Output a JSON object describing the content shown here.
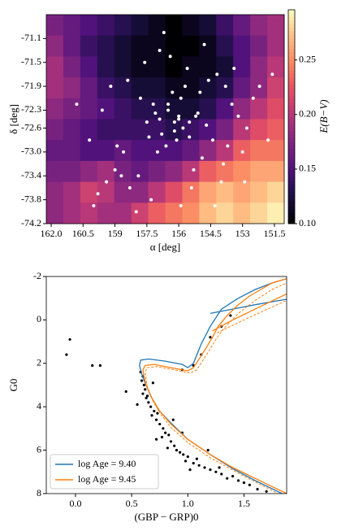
{
  "chart_data": [
    {
      "type": "heatmap",
      "xlabel": "α [deg]",
      "ylabel": "δ [deg]",
      "colorbar_label": "E(B−V)",
      "cmap": "magma",
      "xlim": [
        162.23,
        151.04
      ],
      "ylim": [
        -74.2,
        -70.7
      ],
      "xticks": [
        {
          "value": 162,
          "label": "162.0"
        },
        160.5,
        159,
        157.5,
        156,
        154.5,
        153,
        151.5
      ],
      "xtick_labels_shown": [
        "162.0",
        "160.5",
        "159.0",
        "157.5",
        "156.0",
        "154.5",
        "153.0",
        "151.5"
      ],
      "yticks": [
        -71.1,
        -71.5,
        -71.9,
        -72.3,
        -72.6,
        {
          "value": -73,
          "label": "-73.0"
        },
        -73.4,
        -73.8,
        -74.2
      ],
      "clim": [
        0.1,
        0.296
      ],
      "cticks": [
        {
          "value": 0.1,
          "label": "0.10"
        },
        0.15,
        {
          "value": 0.2,
          "label": "0.20"
        },
        0.25
      ],
      "z": [
        [
          0.17,
          0.16,
          0.15,
          0.14,
          0.13,
          0.12,
          0.11,
          0.1,
          0.11,
          0.12,
          0.14,
          0.16,
          0.18,
          0.19
        ],
        [
          0.18,
          0.16,
          0.14,
          0.13,
          0.12,
          0.11,
          0.11,
          0.1,
          0.1,
          0.11,
          0.13,
          0.15,
          0.17,
          0.19
        ],
        [
          0.19,
          0.17,
          0.15,
          0.13,
          0.12,
          0.11,
          0.11,
          0.1,
          0.11,
          0.11,
          0.12,
          0.15,
          0.18,
          0.2
        ],
        [
          0.19,
          0.18,
          0.16,
          0.14,
          0.13,
          0.12,
          0.12,
          0.11,
          0.11,
          0.12,
          0.13,
          0.16,
          0.18,
          0.21
        ],
        [
          0.18,
          0.17,
          0.16,
          0.15,
          0.14,
          0.13,
          0.13,
          0.12,
          0.12,
          0.13,
          0.15,
          0.18,
          0.2,
          0.22
        ],
        [
          0.17,
          0.16,
          0.15,
          0.14,
          0.14,
          0.14,
          0.14,
          0.13,
          0.14,
          0.15,
          0.17,
          0.2,
          0.22,
          0.23
        ],
        [
          0.16,
          0.16,
          0.15,
          0.15,
          0.16,
          0.15,
          0.15,
          0.15,
          0.16,
          0.18,
          0.2,
          0.23,
          0.24,
          0.24
        ],
        [
          0.17,
          0.17,
          0.18,
          0.19,
          0.17,
          0.16,
          0.17,
          0.18,
          0.2,
          0.23,
          0.24,
          0.25,
          0.26,
          0.26
        ],
        [
          0.18,
          0.19,
          0.21,
          0.2,
          0.18,
          0.18,
          0.2,
          0.22,
          0.24,
          0.26,
          0.27,
          0.26,
          0.27,
          0.28
        ],
        [
          0.18,
          0.19,
          0.2,
          0.19,
          0.19,
          0.21,
          0.23,
          0.24,
          0.25,
          0.27,
          0.28,
          0.27,
          0.28,
          0.29
        ]
      ],
      "points": {
        "color": "#ffffff",
        "x": [
          156.2,
          156.0,
          155.8,
          156.5,
          155.5,
          156.8,
          157.2,
          155.2,
          156.1,
          155.9,
          156.3,
          155.7,
          156.6,
          157.0,
          155.0,
          154.6,
          154.2,
          153.8,
          153.5,
          153.2,
          152.8,
          154.9,
          155.3,
          157.5,
          157.9,
          158.3,
          158.7,
          159.0,
          159.4,
          158.6,
          159.8,
          160.2,
          157.6,
          156.9,
          156.4,
          155.6,
          154.8,
          154.4,
          153.9,
          153.0,
          152.5,
          152.2,
          151.8,
          157.3,
          158.0,
          156.7,
          155.4,
          154.0,
          156.2,
          155.1,
          157.8,
          158.9,
          159.6,
          160.8,
          154.7,
          153.4,
          156.0,
          155.5,
          156.9,
          157.4,
          152.9,
          153.7,
          158.4,
          159.2,
          155.9,
          154.3,
          156.5,
          157.1,
          160.0,
          151.6
        ],
        "values": [
          -72.5,
          -72.4,
          -72.6,
          -72.3,
          -72.5,
          -72.7,
          -72.2,
          -72.4,
          -72.8,
          -72.1,
          -72.0,
          -71.9,
          -72.9,
          -73.0,
          -72.0,
          -71.8,
          -71.7,
          -71.9,
          -72.2,
          -72.4,
          -72.6,
          -73.1,
          -73.3,
          -72.5,
          -73.4,
          -73.6,
          -73.4,
          -73.3,
          -73.5,
          -73.0,
          -73.7,
          -72.8,
          -71.5,
          -71.3,
          -71.4,
          -71.6,
          -71.2,
          -72.8,
          -73.2,
          -73.0,
          -72.1,
          -71.9,
          -72.8,
          -73.8,
          -74.0,
          -71.0,
          -73.6,
          -73.5,
          -72.65,
          -72.35,
          -72.1,
          -72.9,
          -72.3,
          -72.2,
          -72.55,
          -71.6,
          -72.45,
          -72.75,
          -72.45,
          -72.75,
          -73.5,
          -72.9,
          -71.8,
          -71.9,
          -73.9,
          -73.9,
          -72.2,
          -72.35,
          -73.9,
          -71.7
        ]
      }
    },
    {
      "type": "scatter",
      "xlabel": "(GBP − GRP)0",
      "ylabel": "G0",
      "xlim": [
        -0.26,
        1.88
      ],
      "ylim": [
        8,
        -2
      ],
      "xticks": [
        {
          "value": 0,
          "label": "0.0"
        },
        0.5,
        {
          "value": 1,
          "label": "1.0"
        },
        1.5
      ],
      "yticks": [
        -2,
        0,
        2,
        4,
        6,
        8
      ],
      "legend": "lower left",
      "points": {
        "color": "#000000",
        "x": [
          0.58,
          0.6,
          0.59,
          0.61,
          0.62,
          0.6,
          0.63,
          0.65,
          0.64,
          0.67,
          0.7,
          0.68,
          0.72,
          0.75,
          0.73,
          0.78,
          0.8,
          0.77,
          0.83,
          0.85,
          0.88,
          0.82,
          0.9,
          0.93,
          0.96,
          1.0,
          0.98,
          1.05,
          1.1,
          1.08,
          1.15,
          1.2,
          1.25,
          1.3,
          1.35,
          1.4,
          1.45,
          1.5,
          1.55,
          1.62,
          1.7,
          1.18,
          1.28,
          0.95,
          0.87,
          1.02,
          0.72,
          0.69,
          0.55,
          0.45,
          0.22,
          0.15,
          -0.05,
          -0.08,
          0.95,
          1.05,
          1.12,
          1.2,
          1.3,
          1.38
        ],
        "values": [
          2.4,
          2.6,
          2.8,
          3.0,
          3.2,
          3.4,
          3.6,
          3.8,
          3.5,
          4.0,
          4.2,
          4.4,
          4.6,
          4.8,
          4.3,
          5.0,
          5.2,
          5.4,
          5.3,
          5.6,
          5.8,
          5.9,
          6.0,
          6.1,
          6.2,
          6.3,
          6.5,
          6.6,
          6.7,
          6.4,
          6.8,
          6.9,
          7.0,
          7.1,
          7.3,
          7.2,
          7.4,
          7.5,
          7.6,
          7.8,
          7.9,
          6.0,
          6.8,
          5.2,
          4.6,
          6.9,
          5.5,
          2.9,
          3.9,
          3.3,
          2.1,
          2.1,
          0.9,
          1.6,
          2.3,
          2.1,
          1.6,
          0.8,
          0.3,
          -0.2
        ]
      },
      "series": [
        {
          "name": "log Age = 9.40",
          "color": "#1f77b4",
          "x": [
            1.88,
            1.6,
            1.4,
            1.2,
            1.0,
            0.85,
            0.74,
            0.67,
            0.62,
            0.59,
            0.57,
            0.58,
            0.65,
            0.8,
            0.95,
            1.0,
            1.05,
            1.12,
            1.2,
            1.3,
            1.45,
            1.6,
            1.75,
            1.88,
            null,
            1.2,
            1.4,
            1.6,
            1.88
          ],
          "values": [
            8.1,
            7.4,
            6.85,
            6.2,
            5.5,
            4.75,
            4.15,
            3.5,
            2.9,
            2.5,
            2.1,
            1.85,
            1.8,
            1.9,
            2.05,
            2.2,
            2.0,
            1.1,
            0.3,
            -0.5,
            -1.0,
            -1.4,
            -1.7,
            -1.9,
            null,
            -0.3,
            -0.5,
            -0.7,
            -0.95
          ]
        },
        {
          "name": "log Age = 9.45",
          "color": "#ff7f0e",
          "x": [
            1.88,
            1.6,
            1.4,
            1.2,
            1.0,
            0.85,
            0.75,
            0.68,
            0.63,
            0.61,
            0.6,
            0.62,
            0.7,
            0.85,
            1.0,
            1.05,
            1.15,
            1.22,
            1.27,
            1.35,
            1.45,
            1.55,
            1.65,
            1.75,
            1.88,
            null,
            1.22,
            1.4,
            1.6,
            1.88
          ],
          "values": [
            8.0,
            7.3,
            6.8,
            6.2,
            5.5,
            4.8,
            4.2,
            3.6,
            3.0,
            2.6,
            2.3,
            2.1,
            2.05,
            2.2,
            2.35,
            2.2,
            1.4,
            0.8,
            0.3,
            -0.2,
            -0.7,
            -1.1,
            -1.4,
            -1.7,
            -1.9,
            null,
            0.5,
            0.0,
            -0.5,
            -1.2
          ]
        },
        {
          "color": "#ff7f0e",
          "dashed": true,
          "x": [
            1.88,
            1.5,
            1.2,
            1.0,
            0.85,
            0.76,
            0.69,
            0.64,
            0.62,
            0.64,
            0.72,
            0.88,
            1.02,
            1.08,
            1.18,
            1.25,
            1.32,
            1.45,
            1.6,
            1.75,
            1.88,
            null,
            1.26,
            1.5,
            1.88
          ],
          "values": [
            8.2,
            7.2,
            6.35,
            5.65,
            4.95,
            4.35,
            3.75,
            3.1,
            2.4,
            2.2,
            2.15,
            2.3,
            2.45,
            2.3,
            1.5,
            0.9,
            0.4,
            -0.3,
            -0.9,
            -1.4,
            -1.7,
            null,
            0.6,
            0.0,
            -0.9
          ]
        }
      ]
    }
  ]
}
